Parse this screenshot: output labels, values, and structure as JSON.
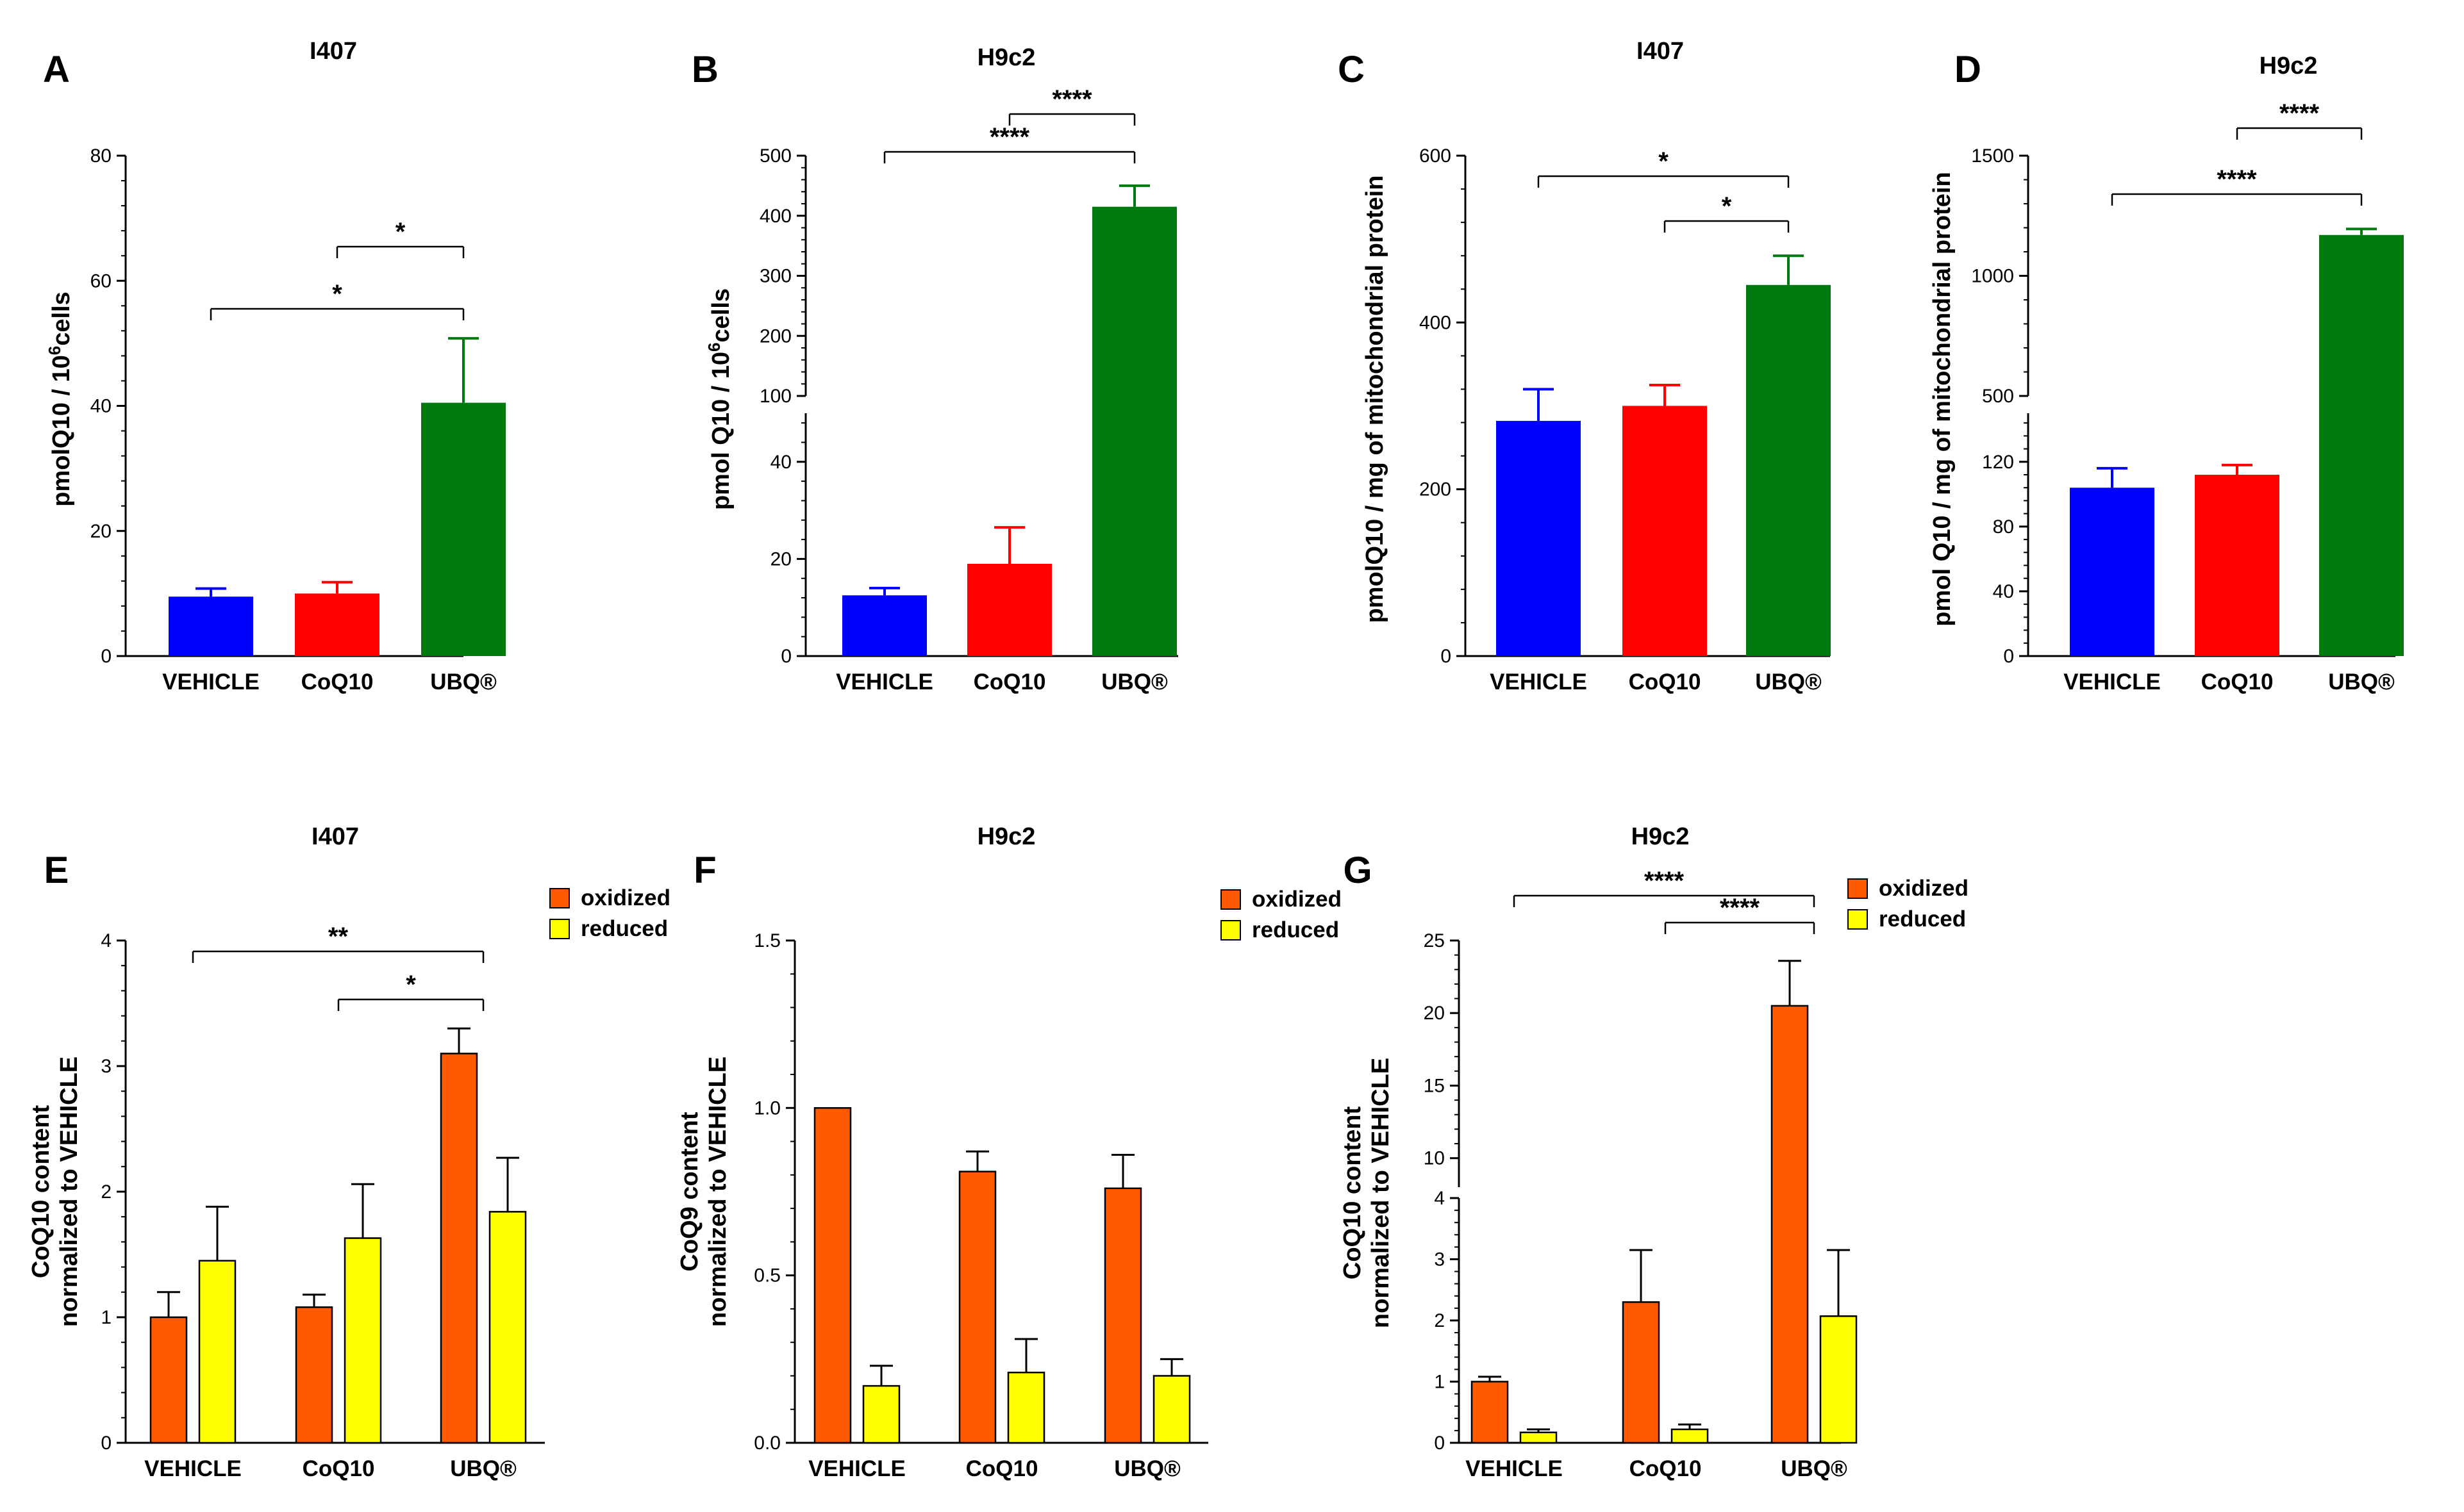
{
  "colors": {
    "vehicle": "#0000ff",
    "coq10": "#ff0000",
    "ubq": "#007a0f",
    "oxidized": "#ff5a00",
    "reduced": "#ffff00"
  },
  "chart_data": [
    {
      "panel": "A",
      "type": "bar",
      "title": "I407",
      "ylabel": "pmolQ10 / 10⁶cells",
      "categories": [
        "VEHICLE",
        "CoQ10",
        "UBQ®"
      ],
      "values": [
        9.5,
        10,
        40.5
      ],
      "errors": [
        1.3,
        1.8,
        10.3
      ],
      "ylim": [
        0,
        80
      ],
      "yticks": [
        0,
        20,
        40,
        60,
        80
      ],
      "significance": [
        {
          "from": 1,
          "to": 2,
          "label": "*"
        },
        {
          "from": 0,
          "to": 2,
          "label": "*"
        }
      ]
    },
    {
      "panel": "B",
      "type": "bar",
      "title": "H9c2",
      "ylabel": "pmol Q10 / 10⁶cells",
      "categories": [
        "VEHICLE",
        "CoQ10",
        "UBQ®"
      ],
      "values": [
        12.5,
        19,
        415
      ],
      "errors": [
        1.5,
        7.5,
        35
      ],
      "axis_break": true,
      "yticks_lower": [
        0,
        20,
        40
      ],
      "ylim_lower": [
        0,
        50
      ],
      "yticks_upper": [
        100,
        200,
        300,
        400,
        500
      ],
      "ylim_upper": [
        100,
        500
      ],
      "significance": [
        {
          "from": 1,
          "to": 2,
          "label": "****"
        },
        {
          "from": 0,
          "to": 2,
          "label": "****"
        }
      ]
    },
    {
      "panel": "C",
      "type": "bar",
      "title": "I407",
      "ylabel": "pmolQ10 / mg of mitochondrial protein",
      "categories": [
        "VEHICLE",
        "CoQ10",
        "UBQ®"
      ],
      "values": [
        282,
        300,
        445
      ],
      "errors": [
        38,
        25,
        35
      ],
      "ylim": [
        0,
        600
      ],
      "yticks": [
        0,
        200,
        400,
        600
      ],
      "significance": [
        {
          "from": 0,
          "to": 2,
          "label": "*"
        },
        {
          "from": 1,
          "to": 2,
          "label": "*"
        }
      ]
    },
    {
      "panel": "D",
      "type": "bar",
      "title": "H9c2",
      "ylabel": "pmol Q10 / mg of mitochondrial protein",
      "categories": [
        "VEHICLE",
        "CoQ10",
        "UBQ®"
      ],
      "values": [
        104,
        112,
        1170
      ],
      "errors": [
        12,
        6,
        25
      ],
      "axis_break": true,
      "yticks_lower": [
        0,
        40,
        80,
        120
      ],
      "ylim_lower": [
        0,
        150
      ],
      "yticks_upper": [
        500,
        1000,
        1500
      ],
      "ylim_upper": [
        500,
        1500
      ],
      "significance": [
        {
          "from": 1,
          "to": 2,
          "label": "****"
        },
        {
          "from": 0,
          "to": 2,
          "label": "****"
        }
      ]
    },
    {
      "panel": "E",
      "type": "bar",
      "title": "I407",
      "ylabel": [
        "CoQ10 content",
        "normalized to VEHICLE"
      ],
      "categories": [
        "VEHICLE",
        "CoQ10",
        "UBQ®"
      ],
      "series": [
        {
          "name": "oxidized",
          "values": [
            1.0,
            1.08,
            3.1
          ],
          "errors": [
            0.2,
            0.1,
            0.2
          ]
        },
        {
          "name": "reduced",
          "values": [
            1.45,
            1.63,
            1.84
          ],
          "errors": [
            0.43,
            0.43,
            0.43
          ]
        }
      ],
      "ylim": [
        0,
        4
      ],
      "yticks": [
        0,
        1,
        2,
        3,
        4
      ],
      "legend": "top-right",
      "significance": [
        {
          "from": 0,
          "to": 2,
          "label": "**"
        },
        {
          "from": 1,
          "to": 2,
          "label": "*"
        }
      ]
    },
    {
      "panel": "F",
      "type": "bar",
      "title": "H9c2",
      "ylabel": [
        "CoQ9 content",
        "normalized to VEHICLE"
      ],
      "categories": [
        "VEHICLE",
        "CoQ10",
        "UBQ®"
      ],
      "series": [
        {
          "name": "oxidized",
          "values": [
            1.0,
            0.81,
            0.76
          ],
          "errors": [
            0,
            0.06,
            0.1
          ]
        },
        {
          "name": "reduced",
          "values": [
            0.17,
            0.21,
            0.2
          ],
          "errors": [
            0.06,
            0.1,
            0.05
          ]
        }
      ],
      "ylim": [
        0,
        1.5
      ],
      "yticks": [
        "0.0",
        "0.5",
        "1.0",
        "1.5"
      ],
      "legend": "top-right",
      "significance": []
    },
    {
      "panel": "G",
      "type": "bar",
      "title": "H9c2",
      "ylabel": [
        "CoQ10 content",
        "normalized to VEHICLE"
      ],
      "categories": [
        "VEHICLE",
        "CoQ10",
        "UBQ®"
      ],
      "series": [
        {
          "name": "oxidized",
          "values": [
            1.0,
            2.3,
            20.5
          ],
          "errors": [
            0.08,
            0.85,
            3.1
          ]
        },
        {
          "name": "reduced",
          "values": [
            0.17,
            0.22,
            2.07
          ],
          "errors": [
            0.05,
            0.08,
            1.08
          ]
        }
      ],
      "axis_break": true,
      "yticks_lower": [
        0,
        1,
        2,
        3,
        4
      ],
      "ylim_lower": [
        0,
        4
      ],
      "yticks_upper": [
        10,
        15,
        20,
        25
      ],
      "ylim_upper": [
        8,
        25
      ],
      "legend": "top-right",
      "significance": [
        {
          "from": 0,
          "to": 2,
          "label": "****"
        },
        {
          "from": 1,
          "to": 2,
          "label": "****"
        }
      ]
    }
  ]
}
